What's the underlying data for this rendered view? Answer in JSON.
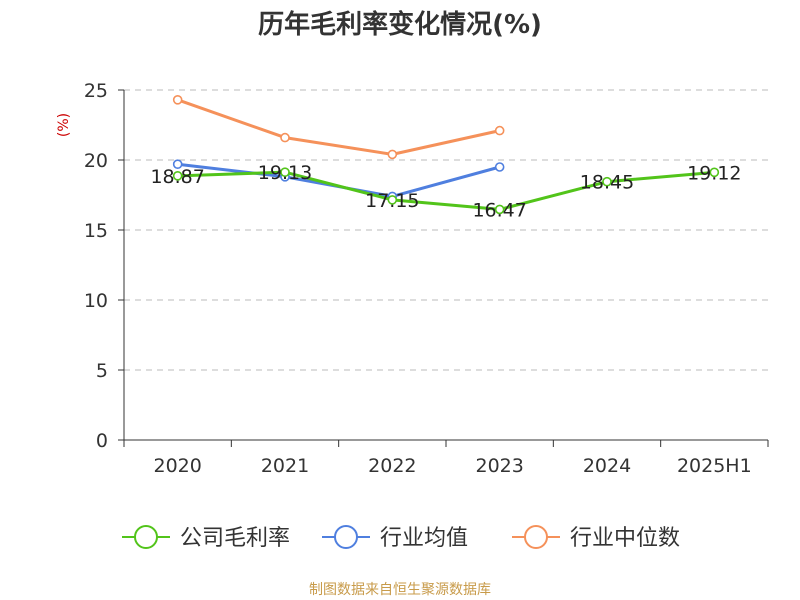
{
  "chart_data": {
    "type": "line",
    "title": "历年毛利率变化情况(%)",
    "ylabel": "(%)",
    "categories": [
      "2020",
      "2021",
      "2022",
      "2023",
      "2024",
      "2025H1"
    ],
    "ylim": [
      0,
      25
    ],
    "yticks": [
      0,
      5,
      10,
      15,
      20,
      25
    ],
    "grid": true,
    "legend_position": "bottom",
    "series": [
      {
        "name": "公司毛利率",
        "color": "#52c41a",
        "values": [
          18.87,
          19.13,
          17.15,
          16.47,
          18.45,
          19.12
        ],
        "labels": [
          "18.87",
          "19.13",
          "17.15",
          "16.47",
          "18.45",
          "19.12"
        ]
      },
      {
        "name": "行业均值",
        "color": "#4f7fdf",
        "values": [
          19.7,
          18.8,
          17.4,
          19.5,
          null,
          null
        ]
      },
      {
        "name": "行业中位数",
        "color": "#f5915a",
        "values": [
          24.3,
          21.6,
          20.4,
          22.1,
          null,
          null
        ]
      }
    ]
  },
  "source": "制图数据来自恒生聚源数据库",
  "colors": {
    "axis": "#333333",
    "grid": "#bbbbbb",
    "unit": "#cc0000",
    "source": "#c89b4a"
  }
}
